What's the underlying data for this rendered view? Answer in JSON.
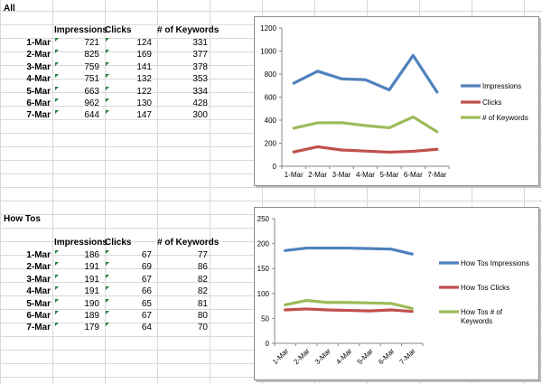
{
  "sections": [
    {
      "title": "All",
      "headers": [
        "Impressions",
        "Clicks",
        "# of Keywords"
      ],
      "rows": [
        {
          "date": "1-Mar",
          "values": [
            "721",
            "124",
            "331"
          ]
        },
        {
          "date": "2-Mar",
          "values": [
            "825",
            "169",
            "377"
          ]
        },
        {
          "date": "3-Mar",
          "values": [
            "759",
            "141",
            "378"
          ]
        },
        {
          "date": "4-Mar",
          "values": [
            "751",
            "132",
            "353"
          ]
        },
        {
          "date": "5-Mar",
          "values": [
            "663",
            "122",
            "334"
          ]
        },
        {
          "date": "6-Mar",
          "values": [
            "962",
            "130",
            "428"
          ]
        },
        {
          "date": "7-Mar",
          "values": [
            "644",
            "147",
            "300"
          ]
        }
      ]
    },
    {
      "title": "How Tos",
      "headers": [
        "Impressions",
        "Clicks",
        "# of Keywords"
      ],
      "rows": [
        {
          "date": "1-Mar",
          "values": [
            "186",
            "67",
            "77"
          ]
        },
        {
          "date": "2-Mar",
          "values": [
            "191",
            "69",
            "86"
          ]
        },
        {
          "date": "3-Mar",
          "values": [
            "191",
            "67",
            "82"
          ]
        },
        {
          "date": "4-Mar",
          "values": [
            "191",
            "66",
            "82"
          ]
        },
        {
          "date": "5-Mar",
          "values": [
            "190",
            "65",
            "81"
          ]
        },
        {
          "date": "6-Mar",
          "values": [
            "189",
            "67",
            "80"
          ]
        },
        {
          "date": "7-Mar",
          "values": [
            "179",
            "64",
            "70"
          ]
        }
      ]
    }
  ],
  "chart_data": [
    {
      "type": "line",
      "title": "",
      "xlabel": "",
      "ylabel": "",
      "x": [
        "1-Mar",
        "2-Mar",
        "3-Mar",
        "4-Mar",
        "5-Mar",
        "6-Mar",
        "7-Mar"
      ],
      "ylim": [
        0,
        1200
      ],
      "yticks": [
        0,
        200,
        400,
        600,
        800,
        1000,
        1200
      ],
      "grid": false,
      "legend": "right",
      "series": [
        {
          "name": "Impressions",
          "color": "#4f81bd",
          "values": [
            721,
            825,
            759,
            751,
            663,
            962,
            644
          ]
        },
        {
          "name": "Clicks",
          "color": "#c0504d",
          "values": [
            124,
            169,
            141,
            132,
            122,
            130,
            147
          ]
        },
        {
          "name": "# of Keywords",
          "color": "#9bbb59",
          "values": [
            331,
            377,
            378,
            353,
            334,
            428,
            300
          ]
        }
      ]
    },
    {
      "type": "line",
      "title": "",
      "xlabel": "",
      "ylabel": "",
      "x": [
        "1-Mar",
        "2-Mar",
        "3-Mar",
        "4-Mar",
        "5-Mar",
        "6-Mar",
        "7-Mar"
      ],
      "ylim": [
        0,
        250
      ],
      "yticks": [
        0,
        50,
        100,
        150,
        200,
        250
      ],
      "grid": false,
      "legend": "right",
      "series": [
        {
          "name": "How Tos Impressions",
          "color": "#4f81bd",
          "values": [
            186,
            191,
            191,
            191,
            190,
            189,
            179
          ]
        },
        {
          "name": "How Tos Clicks",
          "color": "#c0504d",
          "values": [
            67,
            69,
            67,
            66,
            65,
            67,
            64
          ]
        },
        {
          "name": "How Tos # of Keywords",
          "color": "#9bbb59",
          "values": [
            77,
            86,
            82,
            82,
            81,
            80,
            70
          ]
        }
      ]
    }
  ]
}
